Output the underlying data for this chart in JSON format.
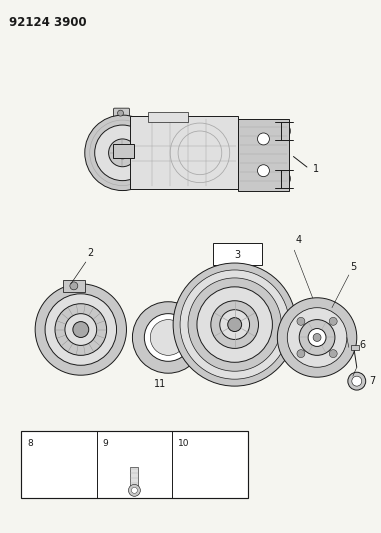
{
  "title": "92124 3900",
  "bg": "#f5f5f0",
  "lc": "#1a1a1a",
  "fig_width": 3.81,
  "fig_height": 5.33,
  "dpi": 100,
  "gray1": "#e0e0e0",
  "gray2": "#c8c8c8",
  "gray3": "#a8a8a8",
  "gray4": "#888888",
  "white": "#ffffff"
}
